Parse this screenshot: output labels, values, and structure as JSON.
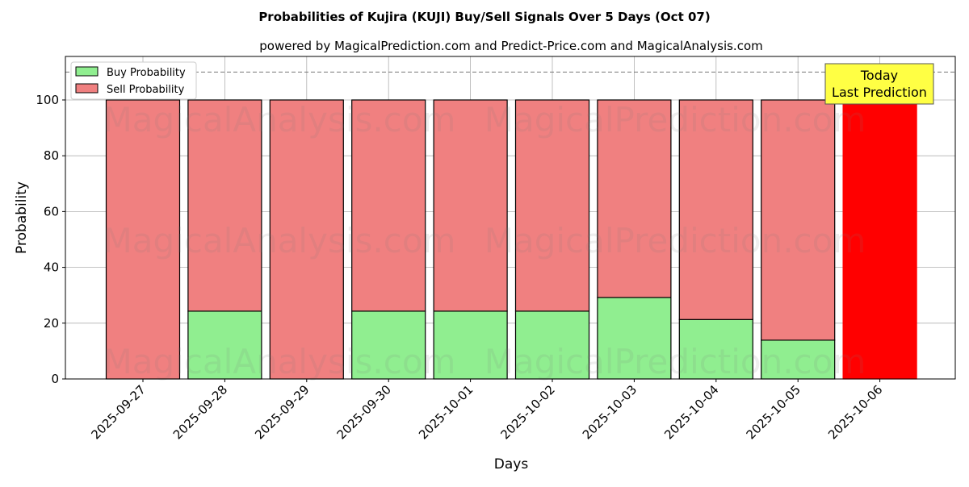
{
  "chart_data": {
    "type": "bar",
    "stacked": true,
    "title": "Probabilities of Kujira (KUJI) Buy/Sell Signals Over 5 Days (Oct 07)",
    "subtitle": "powered by MagicalPrediction.com and Predict-Price.com and MagicalAnalysis.com",
    "xlabel": "Days",
    "ylabel": "Probability",
    "ylim": [
      0,
      115.6
    ],
    "yticks": [
      0,
      20,
      40,
      60,
      80,
      100
    ],
    "grid": true,
    "legend_placement": "top-left",
    "categories": [
      "2025-09-27",
      "2025-09-28",
      "2025-09-29",
      "2025-09-30",
      "2025-10-01",
      "2025-10-02",
      "2025-10-03",
      "2025-10-04",
      "2025-10-05",
      "2025-10-06"
    ],
    "series": [
      {
        "name": "Buy Probability",
        "color": "#90ee90",
        "values": [
          0,
          24.3,
          0,
          24.3,
          24.3,
          24.3,
          29.2,
          21.3,
          13.9,
          0
        ]
      },
      {
        "name": "Sell Probability",
        "color": "#f08080",
        "values": [
          100,
          75.7,
          100,
          75.7,
          75.7,
          75.7,
          70.8,
          78.7,
          86.1,
          100
        ]
      }
    ],
    "highlight": {
      "index": 9,
      "color": "#ff0000"
    },
    "reference_line": {
      "y": 110,
      "style": "dashed"
    },
    "annotation": {
      "line1": "Today",
      "line2": "Last Prediction",
      "color": "#ffff44"
    },
    "watermarks": [
      "MagicalAnalysis.com",
      "MagicalPrediction.com"
    ]
  }
}
